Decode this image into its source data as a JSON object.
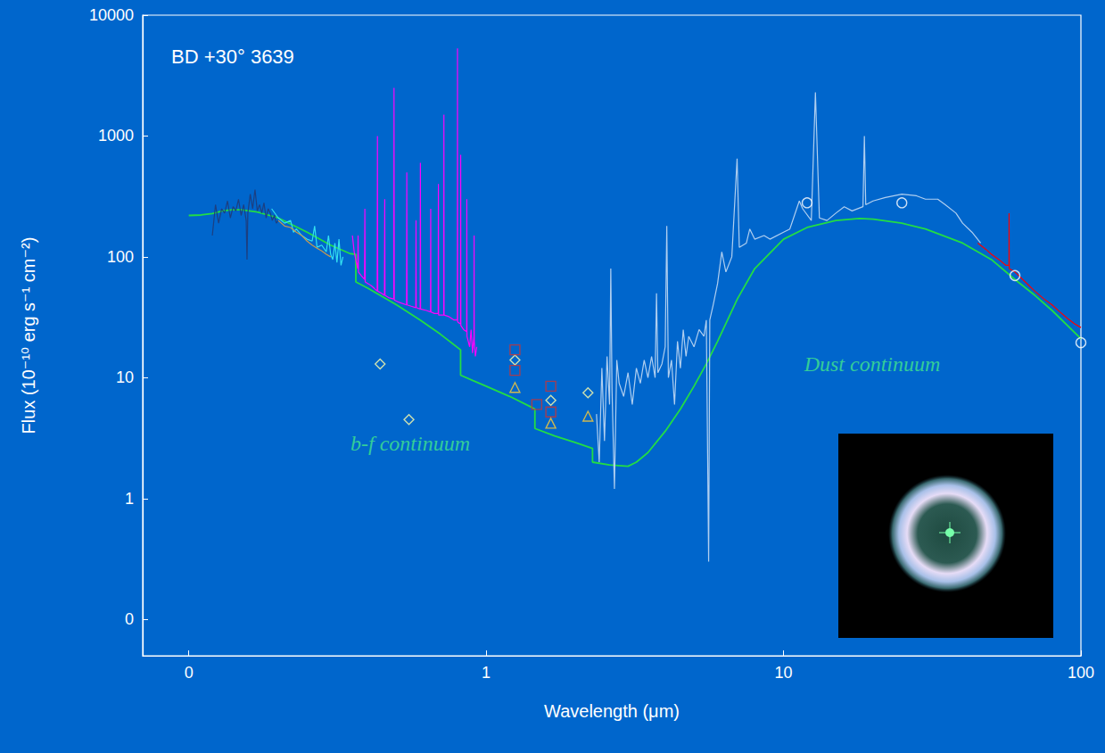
{
  "chart_data": {
    "type": "line",
    "title": "BD +30° 3639",
    "x_label": "Wavelength (μm)",
    "y_label": "Flux (10⁻¹⁰ erg s⁻¹ cm⁻²)",
    "annotations": [
      "b-f continuum",
      "Dust continuum"
    ],
    "log": true,
    "grid": false,
    "xlim": [
      0.07,
      100
    ],
    "xticks": [
      {
        "value": 0.1,
        "label": "0"
      },
      1,
      10,
      100
    ],
    "ylim": [
      0.05,
      10000
    ],
    "yticks": [
      {
        "value": 0.1,
        "label": "0"
      },
      1,
      10,
      100,
      1000,
      10000
    ],
    "series": [
      {
        "type": "line",
        "color": "#22dd44",
        "x": [
          0.1,
          0.11,
          0.12,
          0.13,
          0.14,
          0.15,
          0.17,
          0.2,
          0.25,
          0.3,
          0.35,
          0.3646,
          0.3647,
          0.4,
          0.5,
          0.6,
          0.7,
          0.8204,
          0.8205,
          0.9,
          1.0,
          1.2,
          1.4,
          1.4585,
          1.4586,
          1.7,
          2.0,
          2.2788,
          2.2789,
          2.6,
          3.0,
          3.2,
          3.5,
          4.0,
          4.5,
          5.0,
          5.5,
          6.0,
          7.0,
          8.0,
          10,
          12,
          15,
          18,
          20,
          25,
          30,
          40,
          50,
          60,
          70,
          80,
          100
        ],
        "values": [
          220,
          222,
          228,
          240,
          245,
          245,
          235,
          210,
          160,
          125,
          106,
          105,
          62,
          55,
          40,
          30,
          23,
          17,
          10.5,
          9.5,
          8.5,
          7,
          5.8,
          5.5,
          3.8,
          3.3,
          2.9,
          2.6,
          2.0,
          1.9,
          1.85,
          2.0,
          2.4,
          3.6,
          5.5,
          8.5,
          13,
          20,
          45,
          80,
          140,
          175,
          200,
          208,
          205,
          190,
          170,
          130,
          95,
          65,
          48,
          36,
          21
        ]
      },
      {
        "type": "line",
        "color": "#1c3f80",
        "x": [
          0.12,
          0.123,
          0.126,
          0.129,
          0.132,
          0.135,
          0.138,
          0.141,
          0.144,
          0.147,
          0.15,
          0.153,
          0.156,
          0.157,
          0.158,
          0.161,
          0.164,
          0.167,
          0.17,
          0.173,
          0.176,
          0.179,
          0.182,
          0.185,
          0.188,
          0.191,
          0.194,
          0.197,
          0.2
        ],
        "values": [
          150,
          270,
          190,
          250,
          230,
          290,
          210,
          260,
          240,
          300,
          220,
          270,
          200,
          95,
          230,
          330,
          250,
          360,
          240,
          270,
          230,
          280,
          210,
          250,
          230,
          200,
          220,
          190,
          200
        ]
      },
      {
        "type": "line",
        "color": "#33e0f0",
        "x": [
          0.19,
          0.2,
          0.21,
          0.22,
          0.225,
          0.23,
          0.24,
          0.25,
          0.26,
          0.265,
          0.27,
          0.28,
          0.29,
          0.295,
          0.3,
          0.305,
          0.31,
          0.315,
          0.32,
          0.325,
          0.33
        ],
        "values": [
          250,
          210,
          190,
          200,
          160,
          170,
          150,
          140,
          135,
          180,
          120,
          125,
          110,
          150,
          105,
          95,
          130,
          90,
          140,
          85,
          100
        ]
      },
      {
        "type": "line",
        "color": "#c89a50",
        "x": [
          0.2,
          0.21,
          0.22,
          0.23,
          0.24,
          0.25,
          0.26,
          0.27,
          0.28,
          0.29,
          0.3
        ],
        "values": [
          200,
          180,
          175,
          160,
          150,
          135,
          125,
          118,
          112,
          105,
          100
        ]
      },
      {
        "type": "line",
        "color": "#ff00ff",
        "x": [
          0.355,
          0.36,
          0.37,
          0.371,
          0.372,
          0.38,
          0.39,
          0.391,
          0.392,
          0.41,
          0.42,
          0.43,
          0.431,
          0.432,
          0.445,
          0.455,
          0.456,
          0.457,
          0.47,
          0.485,
          0.489,
          0.49,
          0.491,
          0.51,
          0.54,
          0.541,
          0.542,
          0.56,
          0.58,
          0.581,
          0.582,
          0.6,
          0.601,
          0.602,
          0.63,
          0.65,
          0.651,
          0.652,
          0.67,
          0.69,
          0.691,
          0.692,
          0.72,
          0.721,
          0.722,
          0.75,
          0.78,
          0.8,
          0.801,
          0.802,
          0.815,
          0.82,
          0.821,
          0.822,
          0.84,
          0.86,
          0.861,
          0.862,
          0.88,
          0.89,
          0.9,
          0.91,
          0.911,
          0.912,
          0.92,
          0.93
        ],
        "values": [
          150,
          110,
          80,
          150,
          75,
          70,
          65,
          250,
          62,
          58,
          55,
          52,
          1000,
          52,
          50,
          48,
          300,
          48,
          46,
          45,
          45,
          2500,
          44,
          42,
          40,
          500,
          40,
          39,
          38,
          200,
          38,
          37,
          600,
          37,
          36,
          35,
          250,
          35,
          34,
          34,
          400,
          33,
          33,
          1500,
          33,
          32,
          30,
          30,
          5300,
          29,
          28,
          28,
          700,
          27,
          25,
          24,
          300,
          22,
          18,
          25,
          16,
          22,
          150,
          20,
          15,
          18
        ]
      },
      {
        "type": "line",
        "color": "#b0cff0",
        "x": [
          2.35,
          2.4,
          2.45,
          2.5,
          2.55,
          2.6,
          2.625,
          2.65,
          2.7,
          2.75,
          2.8,
          2.9,
          3.0,
          3.1,
          3.2,
          3.3,
          3.4,
          3.5,
          3.6,
          3.7,
          3.74,
          3.78,
          3.9,
          4.0,
          4.05,
          4.1,
          4.2,
          4.3,
          4.4,
          4.5,
          4.6,
          4.7,
          4.8,
          5.0,
          5.2,
          5.4,
          5.5,
          5.6,
          5.65,
          5.8,
          6.0,
          6.2,
          6.4,
          6.7,
          6.98,
          7.1,
          7.5,
          7.7,
          8.0,
          8.6,
          9.0,
          10.0,
          10.5,
          11.3,
          11.6,
          12.4,
          12.8,
          13.2,
          14,
          15,
          16,
          17,
          18.5,
          18.7,
          18.9,
          20,
          22,
          25,
          28,
          30,
          33,
          35,
          38,
          40,
          43,
          46
        ],
        "values": [
          5,
          2,
          12,
          3,
          15,
          6,
          80,
          8,
          1.2,
          14,
          9,
          7,
          11,
          6,
          12,
          9,
          14,
          10,
          15,
          10,
          50,
          11,
          13,
          18,
          180,
          10,
          14,
          6,
          20,
          12,
          25,
          15,
          22,
          18,
          25,
          22,
          30,
          0.3,
          30,
          40,
          60,
          110,
          75,
          100,
          650,
          120,
          130,
          170,
          140,
          150,
          140,
          160,
          170,
          290,
          250,
          200,
          2300,
          210,
          200,
          230,
          260,
          240,
          260,
          1000,
          270,
          290,
          310,
          330,
          320,
          300,
          300,
          270,
          230,
          190,
          160,
          130
        ]
      },
      {
        "type": "line",
        "color": "#ff0000",
        "x": [
          45,
          48,
          50,
          53,
          56,
          57.3,
          57.34,
          57.4,
          60,
          65,
          70,
          75,
          80,
          85,
          90,
          95,
          100
        ],
        "values": [
          130,
          115,
          105,
          95,
          85,
          85,
          230,
          80,
          75,
          62,
          52,
          45,
          40,
          35,
          31,
          28,
          26
        ]
      },
      {
        "type": "scatter",
        "marker": "diamond",
        "color": "#ffffaa",
        "x": [
          0.44,
          0.55,
          1.25,
          1.65,
          2.2
        ],
        "values": [
          13,
          4.5,
          14,
          6.5,
          7.5
        ]
      },
      {
        "type": "scatter",
        "marker": "square",
        "color": "#cc3333",
        "x": [
          1.25,
          1.25,
          1.48,
          1.65,
          1.65
        ],
        "values": [
          17,
          11.5,
          6,
          8.5,
          5.2
        ]
      },
      {
        "type": "scatter",
        "marker": "triangle",
        "color": "#ffcc33",
        "x": [
          1.25,
          1.65,
          2.2
        ],
        "values": [
          8.3,
          4.2,
          4.8
        ]
      },
      {
        "type": "scatter",
        "marker": "circle",
        "color": "#ffffff",
        "x": [
          12,
          25,
          60,
          100
        ],
        "values": [
          280,
          280,
          70,
          19.5
        ]
      }
    ]
  }
}
